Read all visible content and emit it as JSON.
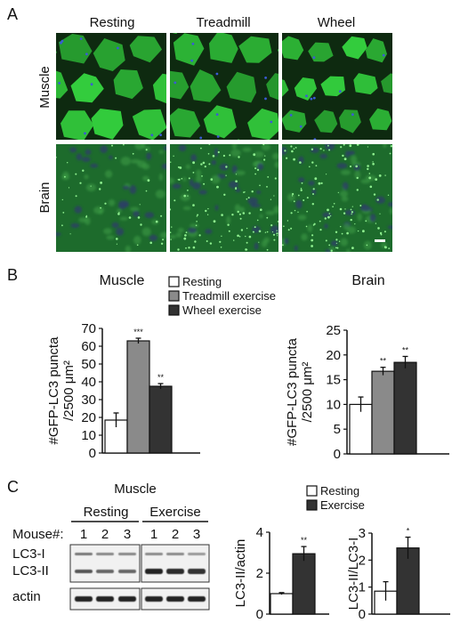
{
  "panel_a": {
    "label": "A",
    "columns": [
      "Resting",
      "Treadmill",
      "Wheel"
    ],
    "rows": [
      "Muscle",
      "Brain"
    ]
  },
  "panel_b": {
    "label": "B"
  },
  "panel_c": {
    "label": "C"
  },
  "colors": {
    "resting": "#ffffff",
    "treadmill": "#8a8a8a",
    "wheel": "#333333",
    "exercise": "#333333",
    "micro_green": "#2fbf3c",
    "micro_nucleus": "#3b5bd6"
  },
  "western_blot": {
    "title": "Muscle",
    "groups": [
      "Resting",
      "Exercise"
    ],
    "mouse_label": "Mouse#:",
    "lane_numbers": [
      "1",
      "2",
      "3",
      "1",
      "2",
      "3"
    ],
    "bands": [
      "LC3-I",
      "LC3-II",
      "actin"
    ]
  },
  "chart_data": [
    {
      "type": "bar",
      "title": "Muscle",
      "categories": [
        "Resting",
        "Treadmill exercise",
        "Wheel exercise"
      ],
      "values": [
        18.5,
        63,
        37.5
      ],
      "errors": [
        4,
        1.5,
        1.5
      ],
      "significance": [
        "",
        "***",
        "**"
      ],
      "ylabel": "#GFP-LC3 puncta /2500 μm²",
      "ylim": [
        0,
        70
      ],
      "yticks": [
        0,
        10,
        20,
        30,
        40,
        50,
        60,
        70
      ],
      "legend": [
        "Resting",
        "Treadmill exercise",
        "Wheel exercise"
      ],
      "legend_placement": "top-right"
    },
    {
      "type": "bar",
      "title": "Brain",
      "categories": [
        "Resting",
        "Treadmill exercise",
        "Wheel exercise"
      ],
      "values": [
        10,
        16.7,
        18.5
      ],
      "errors": [
        1.5,
        0.8,
        1.2
      ],
      "significance": [
        "",
        "**",
        "**"
      ],
      "ylabel": "#GFP-LC3 puncta /2500 μm²",
      "ylim": [
        0,
        25
      ],
      "yticks": [
        0,
        5,
        10,
        15,
        20,
        25
      ]
    },
    {
      "type": "bar",
      "categories": [
        "Resting",
        "Exercise"
      ],
      "values": [
        1,
        2.95
      ],
      "errors": [
        0.05,
        0.35
      ],
      "significance": [
        "",
        "**"
      ],
      "ylabel": "LC3-II/actin",
      "ylim": [
        0,
        4
      ],
      "yticks": [
        0,
        2,
        4
      ]
    },
    {
      "type": "bar",
      "categories": [
        "Resting",
        "Exercise"
      ],
      "values": [
        0.85,
        2.45
      ],
      "errors": [
        0.35,
        0.4
      ],
      "significance": [
        "",
        "*"
      ],
      "ylabel": "LC3-II/LC3-I",
      "ylim": [
        0,
        3
      ],
      "yticks": [
        0,
        1,
        2,
        3
      ],
      "legend": [
        "Resting",
        "Exercise"
      ],
      "legend_placement": "top"
    }
  ]
}
